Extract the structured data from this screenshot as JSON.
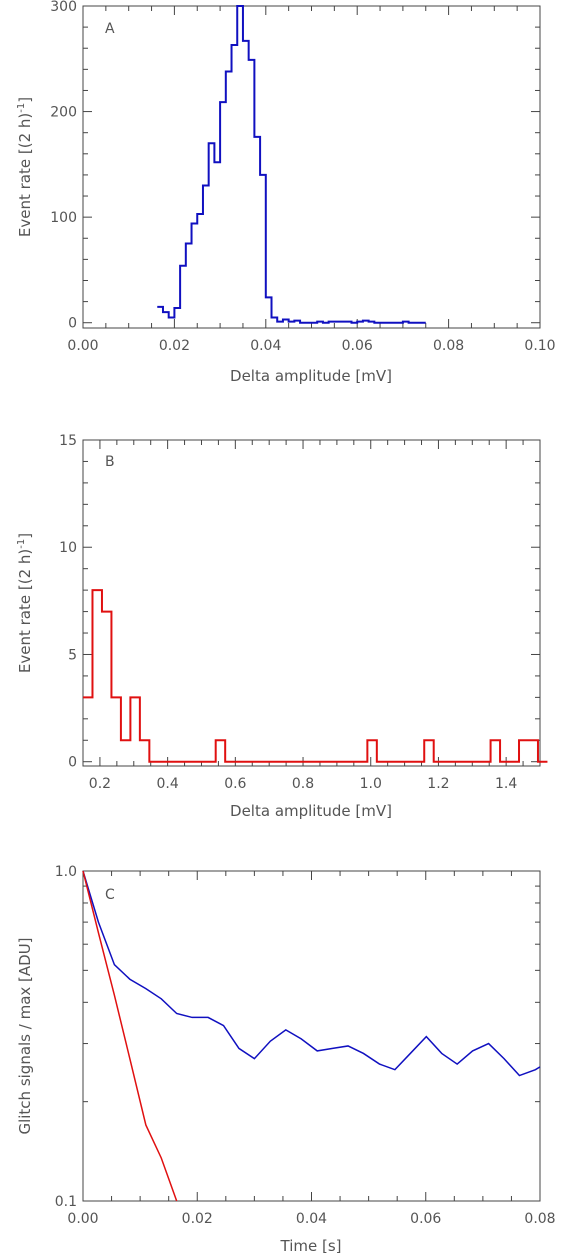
{
  "chart_data": [
    {
      "type": "line",
      "style": "histogram-step",
      "panel_label": "A",
      "xlabel": "Delta amplitude [mV]",
      "ylabel_main": "Event rate ",
      "ylabel_bracket": "[(2 h)",
      "ylabel_sup": "-1",
      "ylabel_close": "]",
      "xlim": [
        0.0,
        0.1
      ],
      "ylim": [
        -5,
        300
      ],
      "xticks": [
        "0.00",
        "0.02",
        "0.04",
        "0.06",
        "0.08",
        "0.10"
      ],
      "xtick_values": [
        0.0,
        0.02,
        0.04,
        0.06,
        0.08,
        0.1
      ],
      "yticks": [
        "0",
        "100",
        "200",
        "300"
      ],
      "ytick_values": [
        0,
        100,
        200,
        300
      ],
      "color": "#1010c0",
      "bin_width": 0.00125,
      "bin_start": 0.01625,
      "values": [
        15,
        10,
        5,
        14,
        54,
        75,
        94,
        103,
        130,
        170,
        152,
        209,
        238,
        263,
        300,
        267,
        249,
        176,
        140,
        24,
        5,
        1,
        3,
        1,
        2,
        0,
        0,
        0,
        1,
        0,
        1,
        1,
        1,
        1,
        0,
        1,
        2,
        1,
        0,
        0,
        0,
        0,
        0,
        1,
        0,
        0,
        0
      ],
      "grid": false
    },
    {
      "type": "line",
      "style": "histogram-step",
      "panel_label": "B",
      "xlabel": "Delta amplitude [mV]",
      "ylabel_main": "Event rate ",
      "ylabel_bracket": "[(2 h)",
      "ylabel_sup": "-1",
      "ylabel_close": "]",
      "xlim": [
        0.15,
        1.5
      ],
      "ylim": [
        -0.2,
        15
      ],
      "xticks": [
        "0.2",
        "0.4",
        "0.6",
        "0.8",
        "1.0",
        "1.2",
        "1.4"
      ],
      "xtick_values": [
        0.2,
        0.4,
        0.6,
        0.8,
        1.0,
        1.2,
        1.4
      ],
      "yticks": [
        "0",
        "5",
        "10",
        "15"
      ],
      "ytick_values": [
        0,
        5,
        10,
        15
      ],
      "color": "#e01010",
      "bin_width": 0.028,
      "bin_start": 0.15,
      "values": [
        3,
        8,
        7,
        3,
        1,
        3,
        1,
        0,
        0,
        0,
        0,
        0,
        0,
        0,
        1,
        0,
        0,
        0,
        0,
        0,
        0,
        0,
        0,
        0,
        0,
        0,
        0,
        0,
        0,
        0,
        1,
        0,
        0,
        0,
        0,
        0,
        1,
        0,
        0,
        0,
        0,
        0,
        0,
        1,
        0,
        0,
        1,
        1,
        0
      ],
      "grid": false
    },
    {
      "type": "line",
      "panel_label": "C",
      "xlabel": "Time [s]",
      "ylabel": "Glitch signals / max [ADU]",
      "xlim": [
        0.0,
        0.08
      ],
      "ylim": [
        0.1,
        1.0
      ],
      "yscale": "log",
      "xticks": [
        "0.00",
        "0.02",
        "0.04",
        "0.06",
        "0.08"
      ],
      "xtick_values": [
        0.0,
        0.02,
        0.04,
        0.06,
        0.08
      ],
      "yticks": [
        "0.1",
        "1.0"
      ],
      "ytick_values": [
        0.1,
        1.0
      ],
      "grid": false,
      "series": [
        {
          "color": "#1010c0",
          "x": [
            0.0,
            0.0027,
            0.0055,
            0.0082,
            0.011,
            0.0137,
            0.0164,
            0.0191,
            0.0219,
            0.0246,
            0.0273,
            0.03,
            0.0328,
            0.0355,
            0.0382,
            0.041,
            0.0437,
            0.0464,
            0.0491,
            0.0519,
            0.0546,
            0.0573,
            0.0601,
            0.0628,
            0.0655,
            0.0682,
            0.071,
            0.0737,
            0.0764,
            0.0792,
            0.08
          ],
          "y": [
            1.0,
            0.7,
            0.52,
            0.47,
            0.44,
            0.41,
            0.37,
            0.36,
            0.36,
            0.34,
            0.29,
            0.27,
            0.305,
            0.33,
            0.31,
            0.285,
            0.29,
            0.295,
            0.28,
            0.26,
            0.25,
            0.28,
            0.315,
            0.28,
            0.26,
            0.285,
            0.3,
            0.27,
            0.24,
            0.25,
            0.255
          ]
        },
        {
          "color": "#e01010",
          "x": [
            0.0,
            0.0027,
            0.0055,
            0.0082,
            0.011,
            0.0137,
            0.0164
          ],
          "y": [
            1.0,
            0.65,
            0.42,
            0.27,
            0.17,
            0.135,
            0.1
          ]
        }
      ]
    }
  ]
}
